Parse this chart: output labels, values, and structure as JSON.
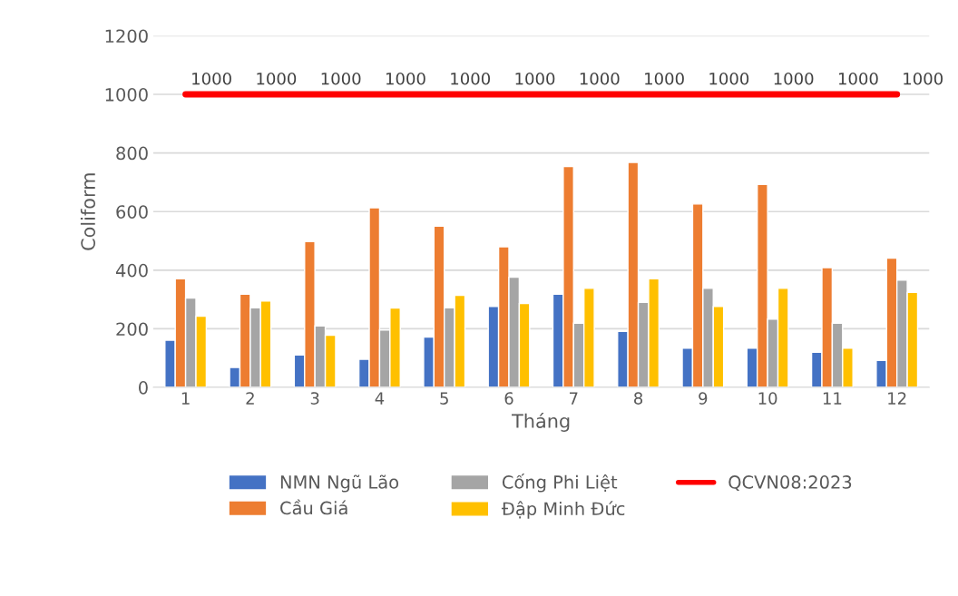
{
  "chart_data": {
    "type": "bar",
    "xlabel": "Tháng",
    "ylabel": "Coliform",
    "categories": [
      "1",
      "2",
      "3",
      "4",
      "5",
      "6",
      "7",
      "8",
      "9",
      "10",
      "11",
      "12"
    ],
    "series": [
      {
        "name": "NMN Ngũ Lão",
        "color": "#4472c4",
        "values": [
          161,
          68,
          111,
          96,
          172,
          276,
          318,
          191,
          134,
          134,
          120,
          92
        ]
      },
      {
        "name": "Cầu Giá",
        "color": "#ed7d31",
        "values": [
          371,
          318,
          498,
          613,
          550,
          480,
          754,
          768,
          626,
          693,
          409,
          441
        ]
      },
      {
        "name": "Cống Phi Liệt",
        "color": "#a5a5a5",
        "values": [
          305,
          272,
          210,
          196,
          272,
          376,
          219,
          290,
          338,
          233,
          219,
          366
        ]
      },
      {
        "name": "Đập Minh Đức",
        "color": "#ffc000",
        "values": [
          243,
          295,
          178,
          271,
          314,
          286,
          338,
          371,
          276,
          338,
          134,
          324
        ]
      },
      {
        "name": "QCVN08:2023",
        "color": "#ff0000",
        "type": "line",
        "values": [
          1000,
          1000,
          1000,
          1000,
          1000,
          1000,
          1000,
          1000,
          1000,
          1000,
          1000,
          1000
        ],
        "value_labels": [
          "1000",
          "1000",
          "1000",
          "1000",
          "1000",
          "1000",
          "1000",
          "1000",
          "1000",
          "1000",
          "1000",
          "1000"
        ]
      }
    ],
    "ylim": [
      0,
      1200
    ],
    "yticks": [
      0,
      200,
      400,
      600,
      800,
      1000,
      1200
    ],
    "grid": "y",
    "legend": "bottom",
    "marker": "none",
    "line_style": "solid"
  }
}
